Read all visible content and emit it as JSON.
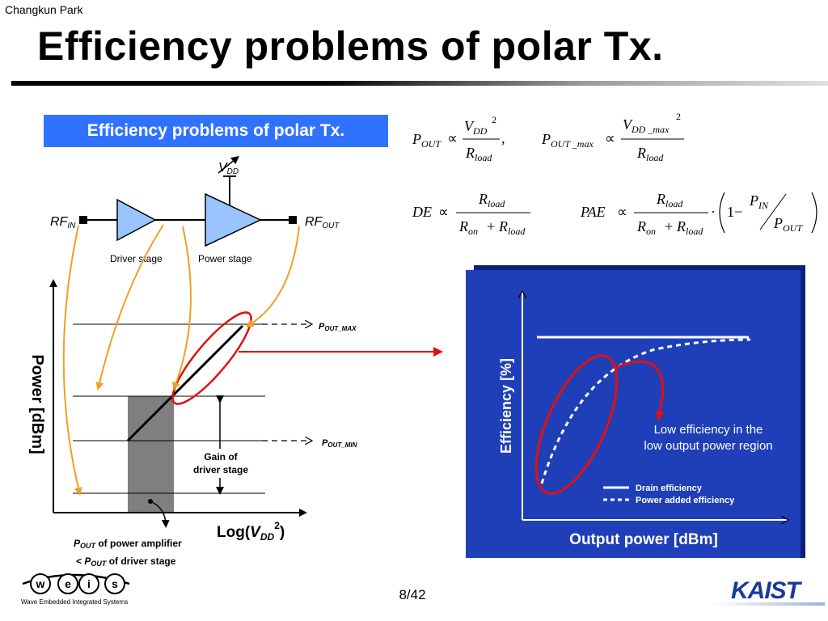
{
  "header": {
    "author": "Changkun Park",
    "title": "Efficiency problems of polar Tx."
  },
  "banner": {
    "label": "Efficiency problems of polar Tx."
  },
  "circuit": {
    "vdd": "V",
    "vdd_sub": "DD",
    "rf_in": "RF",
    "rf_in_sub": "IN",
    "rf_out": "RF",
    "rf_out_sub": "OUT",
    "driver_label": "Driver stage",
    "power_label": "Power stage"
  },
  "left_plot": {
    "ylabel": "Power [dBm]",
    "xlabel_prefix": "Log(",
    "xlabel_var": "V",
    "xlabel_sub": "DD",
    "xlabel_sup": "2",
    "xlabel_suffix": ")",
    "pmax_label": "P",
    "pmax_sub": "OUT_MAX",
    "pmin_label": "P",
    "pmin_sub": "OUT_MIN",
    "gain_line1": "Gain of",
    "gain_line2": "driver stage",
    "note1_p": "P",
    "note1_sub": "OUT",
    "note1_rest": " of power amplifier",
    "note2_lt": "< ",
    "note2_p": "P",
    "note2_sub": "OUT",
    "note2_rest": " of driver stage"
  },
  "right_plot": {
    "ylabel": "Efficiency [%]",
    "xlabel": "Output power [dBm]",
    "annotation_line1": "Low efficiency in the",
    "annotation_line2": "low output power region",
    "legend_solid": "Drain efficiency",
    "legend_dashed": "Power added efficiency",
    "background_color": "#1f3fb8"
  },
  "equations": {
    "propto": "∝",
    "p_out": "P",
    "p_out_sub": "OUT",
    "p_out_max_sub": "OUT _max",
    "v": "V",
    "v_dd_sub": "DD",
    "v_dd_max_sub": "DD _max",
    "sq": "2",
    "r": "R",
    "r_load_sub": "load",
    "r_on_sub": "on",
    "comma": ",",
    "de": "DE",
    "pae": "PAE",
    "plus": "+",
    "dot": "·",
    "one_minus": "1−",
    "p_in_sub": "IN"
  },
  "footer": {
    "page": "8/42",
    "weis_logo": "w e i s",
    "weis_tag": "Wave Embedded Integrated Systems",
    "kaist_logo": "KAIST"
  }
}
